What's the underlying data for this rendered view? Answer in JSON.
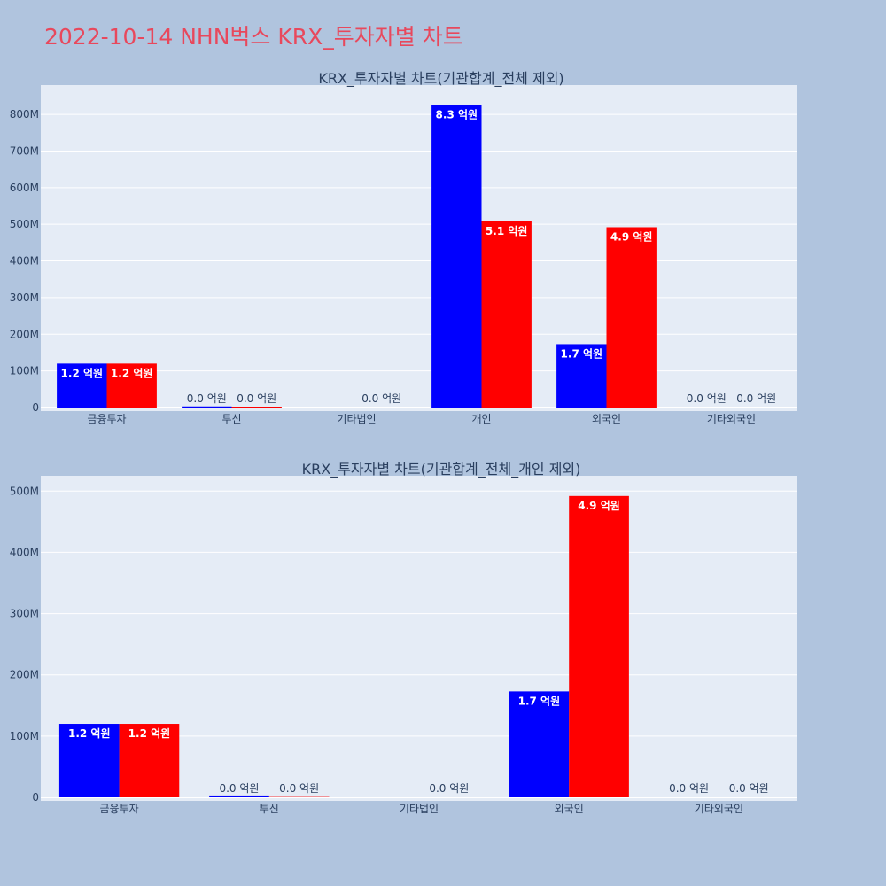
{
  "page_title": "2022-10-14 NHN벅스 KRX_투자자별 차트",
  "colors": {
    "buy": "#0000ff",
    "sell": "#ff0000",
    "plot_bg": "#e5ecf6",
    "page_bg": "#b0c4de",
    "title": "#e8485c"
  },
  "chart_data": [
    {
      "type": "bar",
      "title": "KRX_투자자별 차트(기관합계_전체 제외)",
      "categories": [
        "금융투자",
        "투신",
        "기타법인",
        "개인",
        "외국인",
        "기타외국인"
      ],
      "ylim": [
        0,
        880000000
      ],
      "yticks": [
        0,
        100000000,
        200000000,
        300000000,
        400000000,
        500000000,
        600000000,
        700000000,
        800000000
      ],
      "ytick_labels": [
        "0",
        "100M",
        "200M",
        "300M",
        "400M",
        "500M",
        "600M",
        "700M",
        "800M"
      ],
      "series": [
        {
          "color": "#0000ff",
          "values": [
            120000000,
            3000000,
            null,
            826000000,
            173000000,
            0
          ],
          "labels": [
            "1.2 억원",
            "0.0 억원",
            "",
            "8.3 억원",
            "1.7 억원",
            "0.0 억원"
          ]
        },
        {
          "color": "#ff0000",
          "values": [
            120000000,
            2000000,
            0,
            508000000,
            492000000,
            0
          ],
          "labels": [
            "1.2 억원",
            "0.0 억원",
            "0.0 억원",
            "5.1 억원",
            "4.9 억원",
            "0.0 억원"
          ]
        }
      ]
    },
    {
      "type": "bar",
      "title": "KRX_투자자별 차트(기관합계_전체_개인 제외)",
      "categories": [
        "금융투자",
        "투신",
        "기타법인",
        "외국인",
        "기타외국인"
      ],
      "ylim": [
        0,
        525000000
      ],
      "yticks": [
        0,
        100000000,
        200000000,
        300000000,
        400000000,
        500000000
      ],
      "ytick_labels": [
        "0",
        "100M",
        "200M",
        "300M",
        "400M",
        "500M"
      ],
      "series": [
        {
          "color": "#0000ff",
          "values": [
            120000000,
            3000000,
            null,
            173000000,
            0
          ],
          "labels": [
            "1.2 억원",
            "0.0 억원",
            "",
            "1.7 억원",
            "0.0 억원"
          ]
        },
        {
          "color": "#ff0000",
          "values": [
            120000000,
            2000000,
            0,
            492000000,
            0
          ],
          "labels": [
            "1.2 억원",
            "0.0 억원",
            "0.0 억원",
            "4.9 억원",
            "0.0 억원"
          ]
        }
      ]
    }
  ]
}
